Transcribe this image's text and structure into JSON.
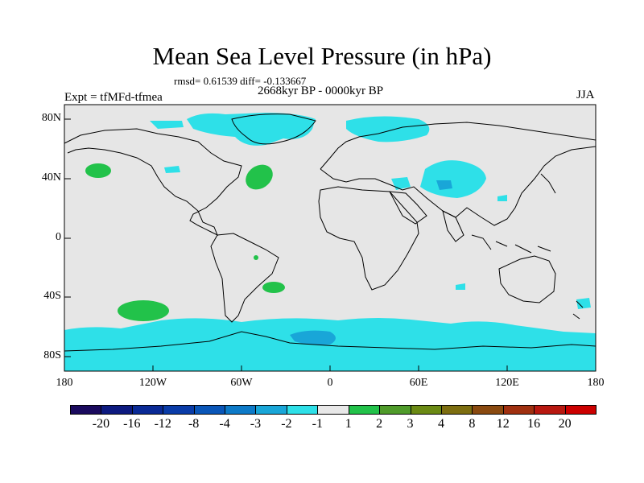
{
  "title": "Mean Sea Level Pressure (in hPa)",
  "stats": "rmsd= 0.61539 diff= -0.133667",
  "period": "2668kyr BP - 0000kyr BP",
  "expt": "Expt = tfMFd-tfmea",
  "season": "JJA",
  "lat_labels": [
    "80N",
    "40N",
    "0",
    "40S",
    "80S"
  ],
  "lon_labels": [
    "180",
    "120W",
    "60W",
    "0",
    "60E",
    "120E",
    "180"
  ],
  "colorbar": {
    "labels": [
      "-20",
      "-16",
      "-12",
      "-8",
      "-4",
      "-3",
      "-2",
      "-1",
      "1",
      "2",
      "3",
      "4",
      "8",
      "12",
      "16",
      "20"
    ],
    "colors": [
      "#1a0a5e",
      "#0d1a80",
      "#0a2a96",
      "#0a3ca8",
      "#0a56b8",
      "#0d7ac8",
      "#19a6d8",
      "#2ee0e8",
      "#e8e8e8",
      "#22c24a",
      "#4f9b2a",
      "#6b8a14",
      "#7d6e10",
      "#8a4a10",
      "#a03010",
      "#b81810",
      "#cc0000"
    ]
  },
  "colors": {
    "land_bg": "#e6e6e6",
    "negative": "#2ee0e8",
    "positive": "#22c24a",
    "strong_negative": "#19a6d8"
  }
}
